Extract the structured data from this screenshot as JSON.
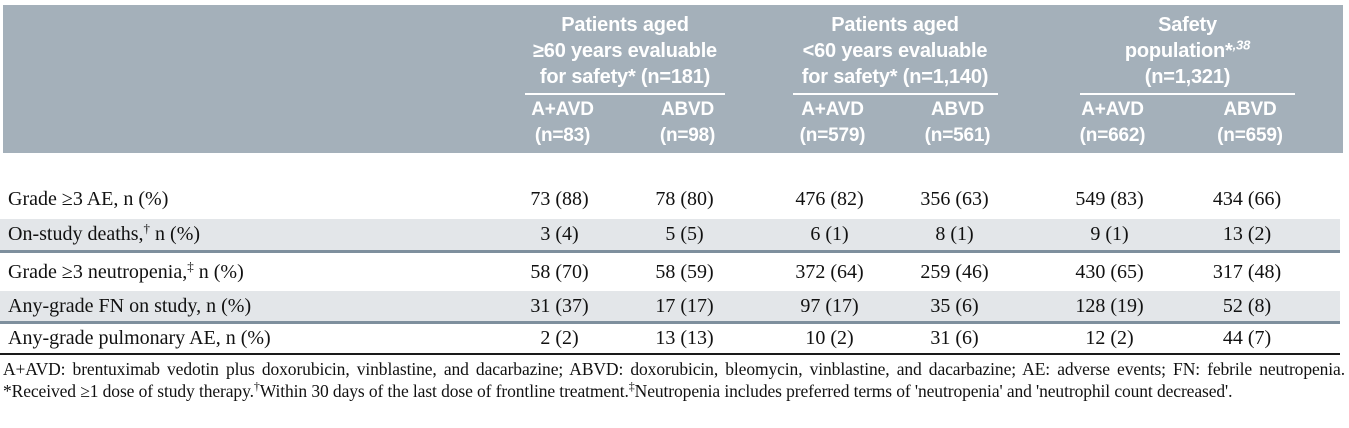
{
  "table": {
    "header": {
      "groups": [
        {
          "line1": "Patients aged",
          "line2": "≥60 years evaluable",
          "line3": "for safety* (n=181)",
          "cols": [
            {
              "drug": "A+AVD",
              "n": "(n=83)"
            },
            {
              "drug": "ABVD",
              "n": "(n=98)"
            }
          ]
        },
        {
          "line1": "Patients aged",
          "line2": "<60 years evaluable",
          "line3": "for safety* (n=1,140)",
          "cols": [
            {
              "drug": "A+AVD",
              "n": "(n=579)"
            },
            {
              "drug": "ABVD",
              "n": "(n=561)"
            }
          ]
        },
        {
          "line1": "Safety",
          "line2": "population*",
          "line2_sup": ",38",
          "line3": "(n=1,321)",
          "cols": [
            {
              "drug": "A+AVD",
              "n": "(n=662)"
            },
            {
              "drug": "ABVD",
              "n": "(n=659)"
            }
          ]
        }
      ]
    },
    "rows": [
      {
        "label_pre": "Grade ≥3 AE, n (%)",
        "sup": "",
        "label_post": "",
        "values": [
          "73 (88)",
          "78 (80)",
          "476 (82)",
          "356 (63)",
          "549 (83)",
          "434 (66)"
        ]
      },
      {
        "label_pre": "On-study deaths,",
        "sup": "†",
        "label_post": " n (%)",
        "values": [
          "3 (4)",
          "5 (5)",
          "6 (1)",
          "8 (1)",
          "9 (1)",
          "13 (2)"
        ]
      },
      {
        "label_pre": "Grade ≥3 neutropenia,",
        "sup": "‡",
        "label_post": " n (%)",
        "values": [
          "58 (70)",
          "58 (59)",
          "372 (64)",
          "259 (46)",
          "430 (65)",
          "317 (48)"
        ]
      },
      {
        "label_pre": "Any-grade FN on study, n (%)",
        "sup": "",
        "label_post": "",
        "values": [
          "31 (37)",
          "17 (17)",
          "97 (17)",
          "35 (6)",
          "128 (19)",
          "52 (8)"
        ]
      },
      {
        "label_pre": "Any-grade pulmonary AE, n (%)",
        "sup": "",
        "label_post": "",
        "values": [
          "2 (2)",
          "13 (13)",
          "10 (2)",
          "31 (6)",
          "12 (2)",
          "44 (7)"
        ]
      }
    ],
    "footnote": {
      "seg1": "A+AVD: brentuximab vedotin plus doxorubicin, vinblastine, and dacarbazine; ABVD: doxorubicin, bleomycin, vinblastine, and dacarbazine; AE: adverse events; FN: febrile neutropenia. *Received ≥1 dose of study therapy.",
      "sup1": "†",
      "seg2": "Within 30 days of the last dose of frontline treatment.",
      "sup2": "‡",
      "seg3": "Neutropenia includes preferred terms of 'neutropenia' and 'neutrophil count decreased'."
    },
    "colors": {
      "header_bg": "#a4b0ba",
      "alt_row_bg": "#e3e6e9",
      "divider": "#7e8f9d",
      "bottom_rule": "#1a1a1a",
      "header_text": "#ffffff"
    }
  }
}
